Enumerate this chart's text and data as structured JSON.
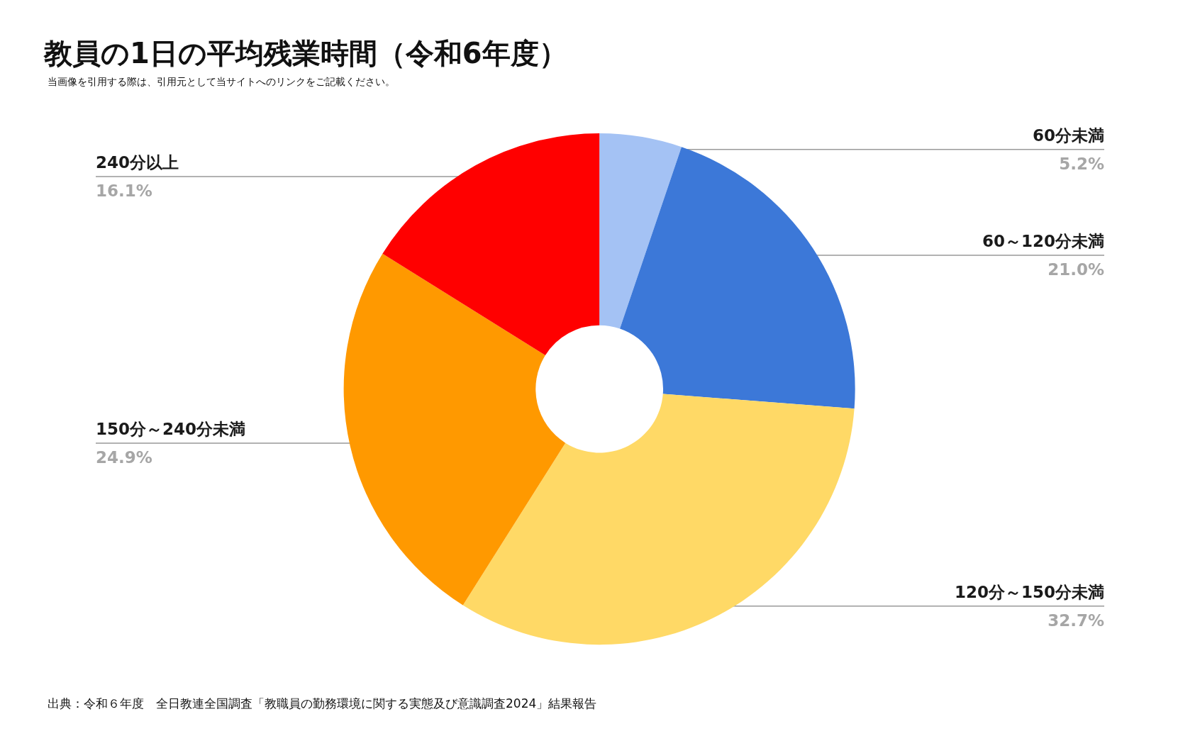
{
  "chart_data": {
    "type": "donut",
    "title": "教員の1日の平均残業時間（令和6年度）",
    "subtitle": "当画像を引用する際は、引用元として当サイトへのリンクをご記載ください。",
    "categories": [
      "60分未満",
      "60～120分未満",
      "120分～150分未満",
      "150分～240分未満",
      "240分以上"
    ],
    "values": [
      5.2,
      21.0,
      32.7,
      24.9,
      16.1
    ],
    "colors": [
      "#a4c2f4",
      "#3c78d8",
      "#ffd966",
      "#ff9900",
      "#ff0000"
    ],
    "value_labels": [
      "5.2%",
      "21.0%",
      "32.7%",
      "24.9%",
      "16.1%"
    ],
    "annotations": [
      "出典：令和６年度　全日教連全国調査「教職員の勤務環境に関する実態及び意識調査2024」結果報告"
    ],
    "legend": false
  }
}
